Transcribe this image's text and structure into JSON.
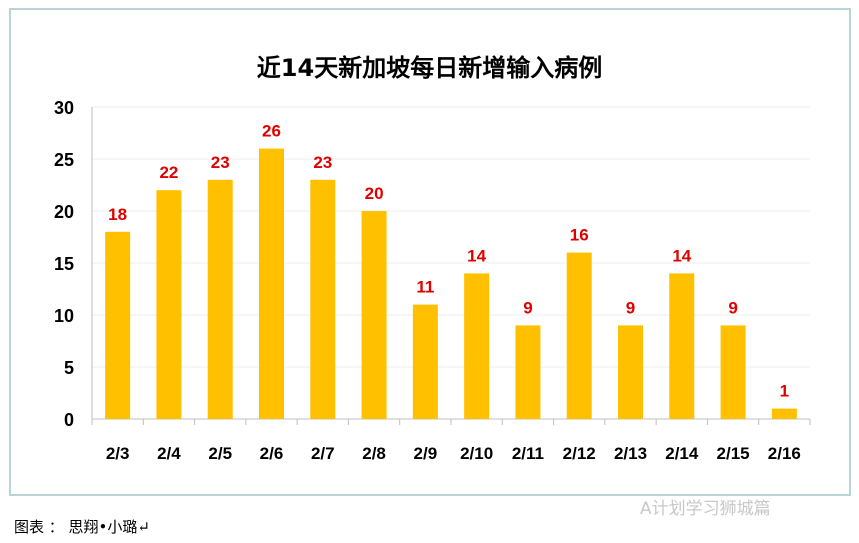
{
  "chart_data": {
    "type": "bar",
    "title": "近14天新加坡每日新增输入病例",
    "categories": [
      "2/3",
      "2/4",
      "2/5",
      "2/6",
      "2/7",
      "2/8",
      "2/9",
      "2/10",
      "2/11",
      "2/12",
      "2/13",
      "2/14",
      "2/15",
      "2/16"
    ],
    "values": [
      18,
      22,
      23,
      26,
      23,
      20,
      11,
      14,
      9,
      16,
      9,
      14,
      9,
      1
    ],
    "ylim": [
      0,
      30
    ],
    "yticks": [
      0,
      5,
      10,
      15,
      20,
      25,
      30
    ],
    "grid": true,
    "bar_color": "#FFC000",
    "label_color": "#E00000",
    "xlabel": "",
    "ylabel": ""
  },
  "footer": "图表 ： 思翔•小璐↵",
  "watermark": "A计划学习狮城篇"
}
